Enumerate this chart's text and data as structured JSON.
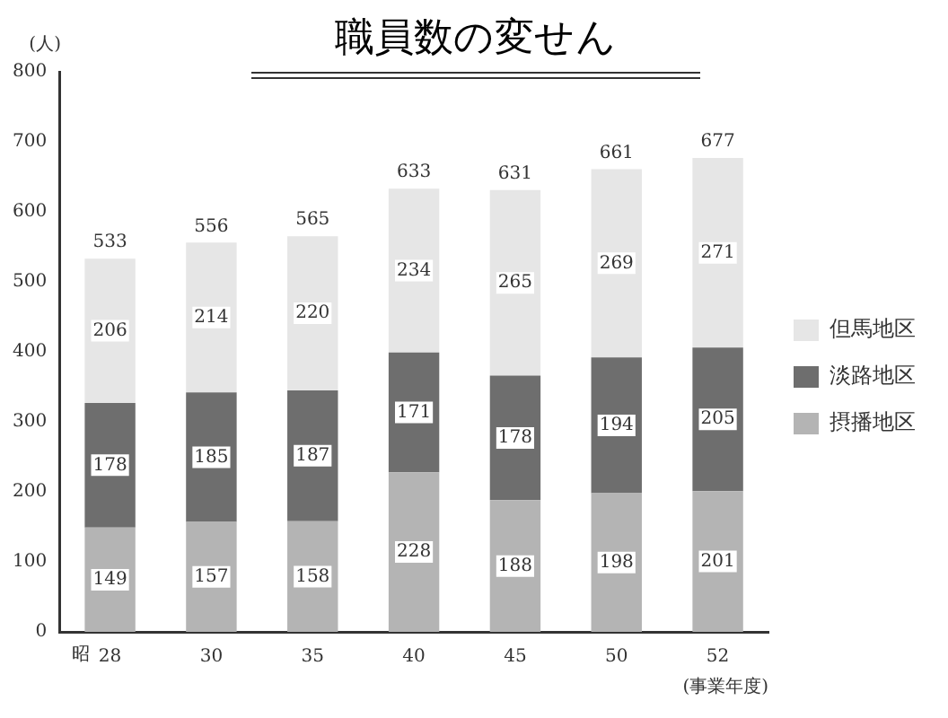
{
  "chart_data": {
    "type": "bar",
    "stacked": true,
    "title": "職員数の変せん",
    "ylabel": "(人)",
    "xlabel": "(事業年度)",
    "annotations": [
      "昭"
    ],
    "categories": [
      "28",
      "30",
      "35",
      "40",
      "45",
      "50",
      "52"
    ],
    "series": [
      {
        "name": "摂播地区",
        "color": "#b4b4b4",
        "values": [
          149,
          157,
          158,
          228,
          188,
          198,
          201
        ]
      },
      {
        "name": "淡路地区",
        "color": "#6e6e6e",
        "values": [
          178,
          185,
          187,
          171,
          178,
          194,
          205
        ]
      },
      {
        "name": "但馬地区",
        "color": "#e6e6e6",
        "values": [
          206,
          214,
          220,
          234,
          265,
          269,
          271
        ]
      }
    ],
    "totals": [
      "533",
      "556",
      "565",
      "633",
      "631",
      "661",
      "677"
    ],
    "data_labels": true,
    "grid": false,
    "legend": "right",
    "ylim": [
      0,
      800
    ],
    "yticks": [
      0,
      100,
      200,
      300,
      400,
      500,
      600,
      700,
      800
    ]
  }
}
